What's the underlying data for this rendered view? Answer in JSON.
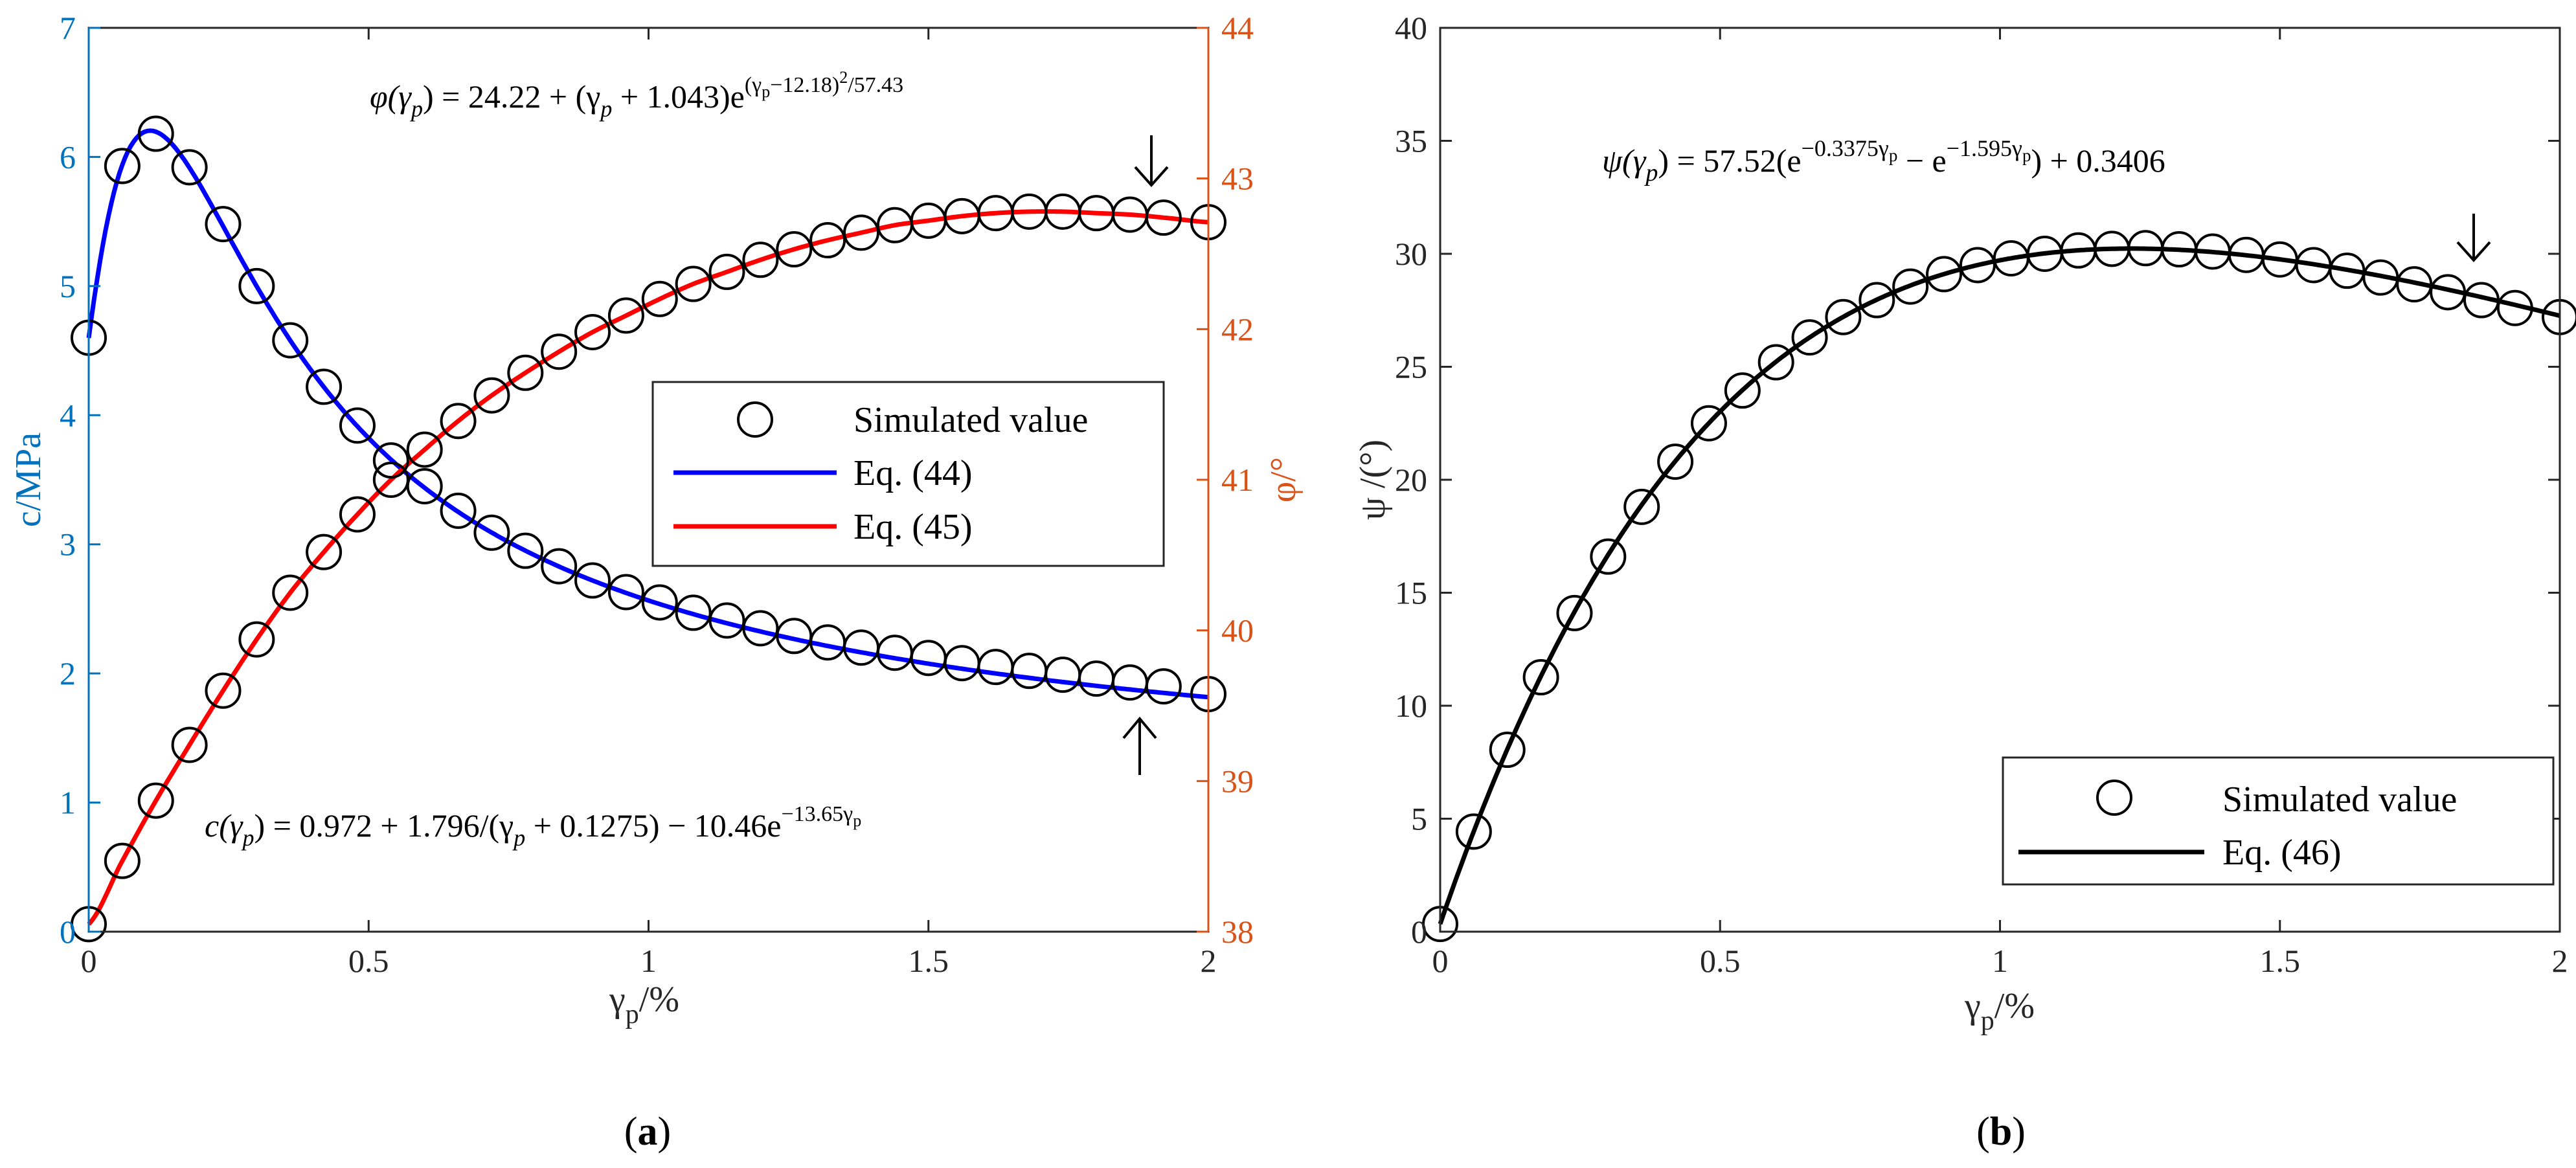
{
  "colors": {
    "c_axis": "#0072BD",
    "phi_axis": "#D95319",
    "eq44": "#0000FF",
    "eq45": "#FF0000",
    "eq46": "#000000",
    "marker": "#000000"
  },
  "panels": {
    "a": {
      "label_open": "(",
      "label_letter": "a",
      "label_close": ")"
    },
    "b": {
      "label_open": "(",
      "label_letter": "b",
      "label_close": ")"
    }
  },
  "chart_data": [
    {
      "id": "a",
      "type": "line",
      "title": "",
      "xlabel": {
        "main": "γ",
        "sub": "p",
        "suffix": "/%"
      },
      "ylabel_left": "c/MPa",
      "ylabel_right": "φ/°",
      "xlim": [
        0,
        2
      ],
      "ylim_left": [
        0,
        7
      ],
      "ylim_right": [
        38,
        44
      ],
      "xticks": [
        "0",
        "0.5",
        "1",
        "1.5",
        "2"
      ],
      "yticks_left": [
        "0",
        "1",
        "2",
        "3",
        "4",
        "5",
        "6",
        "7"
      ],
      "yticks_right": [
        "38",
        "39",
        "40",
        "41",
        "42",
        "43",
        "44"
      ],
      "legend": {
        "position": "center-right",
        "entries": [
          "Simulated value",
          "Eq. (44)",
          "Eq. (45)"
        ]
      },
      "series": [
        {
          "name": "Simulated value (c)",
          "kind": "marker",
          "axis": "left",
          "x": [
            0,
            0.06,
            0.12,
            0.18,
            0.24,
            0.3,
            0.36,
            0.42,
            0.48,
            0.54,
            0.6,
            0.66,
            0.72,
            0.78,
            0.84,
            0.9,
            0.96,
            1.02,
            1.08,
            1.14,
            1.2,
            1.26,
            1.32,
            1.38,
            1.44,
            1.5,
            1.56,
            1.62,
            1.68,
            1.74,
            1.8,
            1.86,
            1.92,
            2.0
          ],
          "y": [
            4.6,
            5.93,
            6.18,
            5.92,
            5.48,
            5.0,
            4.58,
            4.22,
            3.92,
            3.65,
            3.45,
            3.26,
            3.09,
            2.95,
            2.83,
            2.72,
            2.63,
            2.55,
            2.47,
            2.41,
            2.35,
            2.29,
            2.24,
            2.2,
            2.16,
            2.12,
            2.08,
            2.05,
            2.02,
            1.99,
            1.96,
            1.93,
            1.9,
            1.84
          ]
        },
        {
          "name": "Simulated value (φ)",
          "kind": "marker",
          "axis": "right",
          "x": [
            0,
            0.06,
            0.12,
            0.18,
            0.24,
            0.3,
            0.36,
            0.42,
            0.48,
            0.54,
            0.6,
            0.66,
            0.72,
            0.78,
            0.84,
            0.9,
            0.96,
            1.02,
            1.08,
            1.14,
            1.2,
            1.26,
            1.32,
            1.38,
            1.44,
            1.5,
            1.56,
            1.62,
            1.68,
            1.74,
            1.8,
            1.86,
            1.92,
            2.0
          ],
          "y": [
            38.05,
            38.47,
            38.87,
            39.24,
            39.6,
            39.94,
            40.25,
            40.52,
            40.77,
            41.0,
            41.2,
            41.39,
            41.56,
            41.71,
            41.85,
            41.98,
            42.09,
            42.2,
            42.3,
            42.38,
            42.46,
            42.53,
            42.59,
            42.64,
            42.69,
            42.72,
            42.75,
            42.77,
            42.78,
            42.78,
            42.77,
            42.76,
            42.74,
            42.71
          ]
        },
        {
          "name": "Eq. (44)",
          "kind": "line",
          "axis": "left",
          "formula": "c"
        },
        {
          "name": "Eq. (45)",
          "kind": "line",
          "axis": "right",
          "formula": "phi"
        }
      ],
      "annotations": [
        {
          "id": "eq-phi",
          "lhs": "φ(γ",
          "lhs_sub": "p",
          "mid": ") = 24.22 + (γ",
          "mid_sub": "p",
          "rest": " + 1.043)e",
          "sup": "(γ",
          "sup_sub": "p",
          "sup_rest": "−12.18)",
          "sup2": "2",
          "sup_tail": "/57.43"
        },
        {
          "id": "eq-c",
          "lhs": "c(γ",
          "lhs_sub": "p",
          "mid": ") = 0.972 + 1.796/(γ",
          "mid_sub": "p",
          "rest": " + 0.1275) − 10.46e",
          "sup": "−13.65γ",
          "sup_sub": "p"
        }
      ]
    },
    {
      "id": "b",
      "type": "line",
      "title": "",
      "xlabel": {
        "main": "γ",
        "sub": "p",
        "suffix": "/%"
      },
      "ylabel": "ψ /(°)",
      "xlim": [
        0,
        2
      ],
      "ylim": [
        0,
        40
      ],
      "xticks": [
        "0",
        "0.5",
        "1",
        "1.5",
        "2"
      ],
      "yticks": [
        "0",
        "5",
        "10",
        "15",
        "20",
        "25",
        "30",
        "35",
        "40"
      ],
      "legend": {
        "position": "bottom-right",
        "entries": [
          "Simulated value",
          "Eq. (46)"
        ]
      },
      "series": [
        {
          "name": "Simulated value",
          "kind": "marker",
          "x": [
            0,
            0.06,
            0.12,
            0.18,
            0.24,
            0.3,
            0.36,
            0.42,
            0.48,
            0.54,
            0.6,
            0.66,
            0.72,
            0.78,
            0.84,
            0.9,
            0.96,
            1.02,
            1.08,
            1.14,
            1.2,
            1.26,
            1.32,
            1.38,
            1.44,
            1.5,
            1.56,
            1.62,
            1.68,
            1.74,
            1.8,
            1.86,
            1.92,
            2.0
          ],
          "y": [
            0.34,
            4.43,
            8.05,
            11.26,
            14.1,
            16.6,
            18.8,
            20.8,
            22.5,
            23.95,
            25.2,
            26.3,
            27.2,
            27.95,
            28.55,
            29.1,
            29.5,
            29.8,
            30.0,
            30.15,
            30.22,
            30.25,
            30.2,
            30.1,
            29.95,
            29.75,
            29.5,
            29.25,
            28.95,
            28.65,
            28.3,
            27.95,
            27.6,
            27.2
          ]
        },
        {
          "name": "Eq. (46)",
          "kind": "line",
          "formula": "psi"
        }
      ],
      "annotations": [
        {
          "id": "eq-psi",
          "lhs": "ψ(γ",
          "lhs_sub": "p",
          "mid": ") = 57.52(e",
          "sup1": "−0.3375γ",
          "sup1_sub": "p",
          "rest": " − e",
          "sup2": "−1.595γ",
          "sup2_sub": "p",
          "tail": ") + 0.3406"
        }
      ]
    }
  ]
}
